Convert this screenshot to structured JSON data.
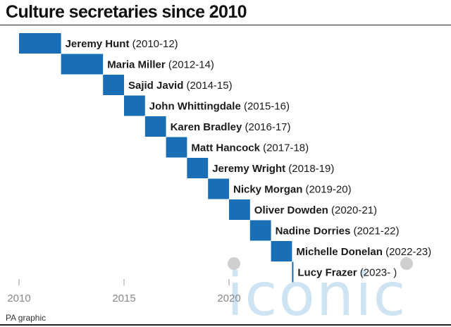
{
  "title": "Culture secretaries since 2010",
  "source": "PA graphic",
  "watermark": "iconic",
  "chart_data": {
    "type": "bar",
    "subtype": "gantt",
    "x_axis": {
      "ticks": [
        2010,
        2015,
        2020
      ],
      "xlim": [
        2010,
        2023.55
      ]
    },
    "bar_color": "#1a6eb5",
    "rows": [
      {
        "name": "Jeremy Hunt",
        "period": "(2010-12)",
        "start": 2010.0,
        "end": 2012.0
      },
      {
        "name": "Maria Miller",
        "period": "(2012-14)",
        "start": 2012.0,
        "end": 2014.0
      },
      {
        "name": "Sajid Javid",
        "period": "(2014-15)",
        "start": 2014.0,
        "end": 2015.0
      },
      {
        "name": "John Whittingdale",
        "period": "(2015-16)",
        "start": 2015.0,
        "end": 2016.0
      },
      {
        "name": "Karen Bradley",
        "period": "(2016-17)",
        "start": 2016.0,
        "end": 2017.0
      },
      {
        "name": "Matt Hancock",
        "period": "(2017-18)",
        "start": 2017.0,
        "end": 2018.0
      },
      {
        "name": "Jeremy Wright",
        "period": "(2018-19)",
        "start": 2018.0,
        "end": 2019.0
      },
      {
        "name": "Nicky Morgan",
        "period": "(2019-20)",
        "start": 2019.0,
        "end": 2020.0
      },
      {
        "name": "Oliver Dowden",
        "period": "(2020-21)",
        "start": 2020.0,
        "end": 2021.0
      },
      {
        "name": "Nadine Dorries",
        "period": "(2021-22)",
        "start": 2021.0,
        "end": 2022.0
      },
      {
        "name": "Michelle Donelan",
        "period": "(2022-23)",
        "start": 2022.0,
        "end": 2023.0
      },
      {
        "name": "Lucy Frazer",
        "period": "(2023- )",
        "start": 2023.0,
        "end": 2023.05
      }
    ]
  }
}
